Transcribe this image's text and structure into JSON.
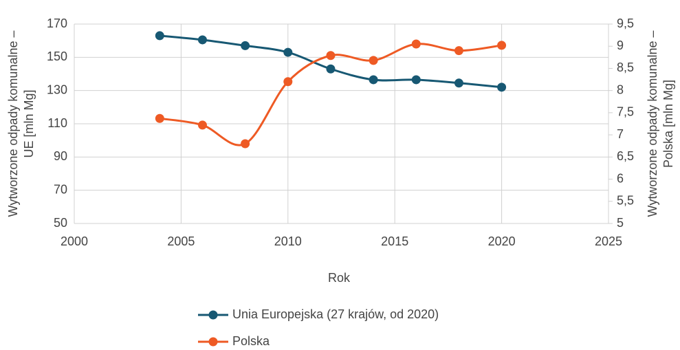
{
  "chart_data": {
    "type": "line",
    "x_label": "Rok",
    "y_label": [
      "Wytworzone odpady komunalne –",
      "UE [mln Mg]"
    ],
    "y2_label": [
      "Wytworzone odpady komunalne –",
      "Polska [mln Mg]"
    ],
    "x": [
      2004,
      2006,
      2008,
      2010,
      2012,
      2014,
      2016,
      2018,
      2020
    ],
    "series": [
      {
        "name": "Unia Europejska (27 krajów, od 2020)",
        "color": "#175873",
        "axis": "y",
        "values": [
          163,
          160.5,
          157,
          153,
          143,
          136.5,
          136.5,
          134.5,
          132
        ]
      },
      {
        "name": "Polska",
        "color": "#ee5a24",
        "axis": "y2",
        "values": [
          7.37,
          7.22,
          6.8,
          8.2,
          8.79,
          8.68,
          9.05,
          8.9,
          9.02
        ]
      }
    ],
    "xlim": [
      2000,
      2025
    ],
    "xticks": [
      2000,
      2005,
      2010,
      2015,
      2020,
      2025
    ],
    "ylim": [
      50,
      170
    ],
    "yticks": [
      50,
      70,
      90,
      110,
      130,
      150,
      170
    ],
    "y2lim": [
      5,
      9.5
    ],
    "y2ticks": [
      5,
      {
        "value": 5.5,
        "label": "5,5"
      },
      6,
      {
        "value": 6.5,
        "label": "6,5"
      },
      7,
      {
        "value": 7.5,
        "label": "7,5"
      },
      8,
      {
        "value": 8.5,
        "label": "8,5"
      },
      9,
      {
        "value": 9.5,
        "label": "9,5"
      }
    ],
    "grid": true,
    "legend": "bottom"
  }
}
